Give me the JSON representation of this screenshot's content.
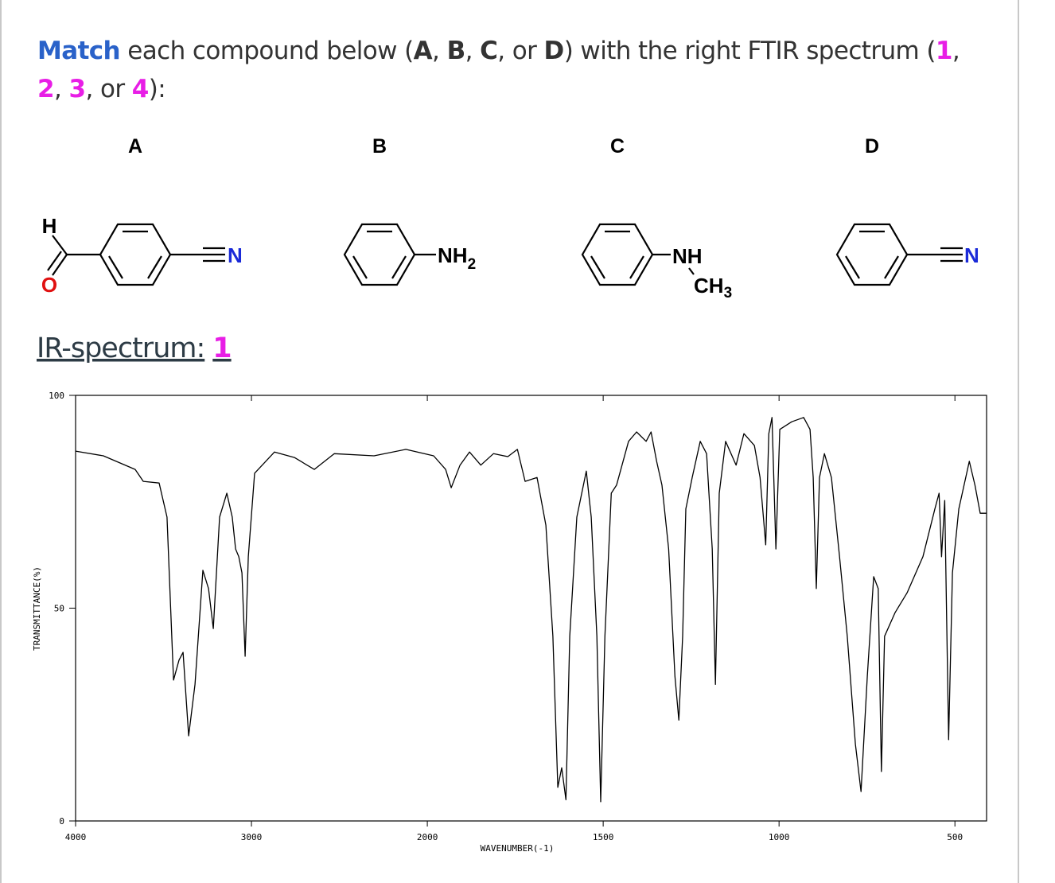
{
  "question": {
    "segments": [
      {
        "text": "Match",
        "bold": true,
        "color": "#2a62c9"
      },
      {
        "text": " each compound below ("
      },
      {
        "text": "A",
        "bold": true
      },
      {
        "text": ", "
      },
      {
        "text": "B",
        "bold": true
      },
      {
        "text": ", "
      },
      {
        "text": "C",
        "bold": true
      },
      {
        "text": ", or "
      },
      {
        "text": "D",
        "bold": true
      },
      {
        "text": ") with the right FTIR spectrum ("
      },
      {
        "text": "1",
        "bold": true,
        "color": "#e81ee6"
      },
      {
        "text": ", "
      },
      {
        "text": "2",
        "bold": true,
        "color": "#e81ee6"
      },
      {
        "text": ", "
      },
      {
        "text": "3",
        "bold": true,
        "color": "#e81ee6"
      },
      {
        "text": ", or "
      },
      {
        "text": "4",
        "bold": true,
        "color": "#e81ee6"
      },
      {
        "text": "):"
      }
    ]
  },
  "compounds": [
    {
      "label": "A",
      "atoms": [
        "H",
        "O",
        "N"
      ]
    },
    {
      "label": "B",
      "atoms": [
        "NH",
        "2"
      ]
    },
    {
      "label": "C",
      "atoms": [
        "NH",
        "CH",
        "3"
      ]
    },
    {
      "label": "D",
      "atoms": [
        "N"
      ]
    }
  ],
  "spectrum_heading": {
    "text": "IR-spectrum:",
    "number": "1",
    "number_color": "#e81ee6"
  },
  "chart_data": {
    "type": "line",
    "color": "#000000",
    "xlabel": "WAVENUMBER(-1)",
    "ylabel": "TRANSMITTANCE(%)",
    "xlim": [
      4000,
      410
    ],
    "ylim": [
      0,
      100
    ],
    "xticks": [
      4000,
      3000,
      2000,
      1500,
      1000,
      500
    ],
    "yticks": [
      0,
      50,
      100
    ],
    "x": [
      4000,
      3842,
      3661,
      3615,
      3525,
      3480,
      3443,
      3412,
      3389,
      3357,
      3321,
      3276,
      3244,
      3217,
      3181,
      3140,
      3109,
      3090,
      3072,
      3054,
      3036,
      3018,
      2982,
      2869,
      2756,
      2643,
      2529,
      2303,
      2122,
      1982,
      1948,
      1932,
      1907,
      1880,
      1848,
      1812,
      1771,
      1744,
      1722,
      1688,
      1663,
      1643,
      1629,
      1618,
      1606,
      1595,
      1575,
      1548,
      1534,
      1518,
      1507,
      1495,
      1477,
      1462,
      1428,
      1405,
      1378,
      1364,
      1348,
      1333,
      1314,
      1296,
      1285,
      1274,
      1265,
      1247,
      1224,
      1206,
      1190,
      1181,
      1170,
      1152,
      1122,
      1100,
      1070,
      1054,
      1038,
      1029,
      1020,
      1009,
      998,
      964,
      930,
      912,
      903,
      894,
      885,
      871,
      851,
      828,
      806,
      783,
      767,
      749,
      731,
      718,
      709,
      700,
      670,
      636,
      591,
      557,
      545,
      538,
      529,
      518,
      507,
      489,
      459,
      443,
      428,
      410
    ],
    "values": [
      86.9,
      85.8,
      82.6,
      79.8,
      79.4,
      71.4,
      33.1,
      37.8,
      39.6,
      20.0,
      32.1,
      58.9,
      54.6,
      45.2,
      71.4,
      77.0,
      71.4,
      63.9,
      62.1,
      58.3,
      38.7,
      62.1,
      81.7,
      86.7,
      85.4,
      82.6,
      86.3,
      85.8,
      87.3,
      85.8,
      82.6,
      78.3,
      83.6,
      86.7,
      83.6,
      86.3,
      85.6,
      87.3,
      79.8,
      80.7,
      69.5,
      43.4,
      7.9,
      12.5,
      5.0,
      43.4,
      71.4,
      82.2,
      71.4,
      43.4,
      4.5,
      43.4,
      77.0,
      78.9,
      89.2,
      91.4,
      89.2,
      91.4,
      84.5,
      78.9,
      63.9,
      34.0,
      23.7,
      43.4,
      73.3,
      80.7,
      89.2,
      86.3,
      63.9,
      32.1,
      77.0,
      89.2,
      83.6,
      91.0,
      88.2,
      80.7,
      64.9,
      91.0,
      94.8,
      63.9,
      92.0,
      93.8,
      94.8,
      92.0,
      80.7,
      54.6,
      80.7,
      86.3,
      80.7,
      62.1,
      43.4,
      18.1,
      6.9,
      34.0,
      57.4,
      54.6,
      11.6,
      43.4,
      49.0,
      53.6,
      62.1,
      73.3,
      77.0,
      62.1,
      75.3,
      19.1,
      58.3,
      73.3,
      84.5,
      78.9,
      72.3,
      72.3
    ]
  }
}
